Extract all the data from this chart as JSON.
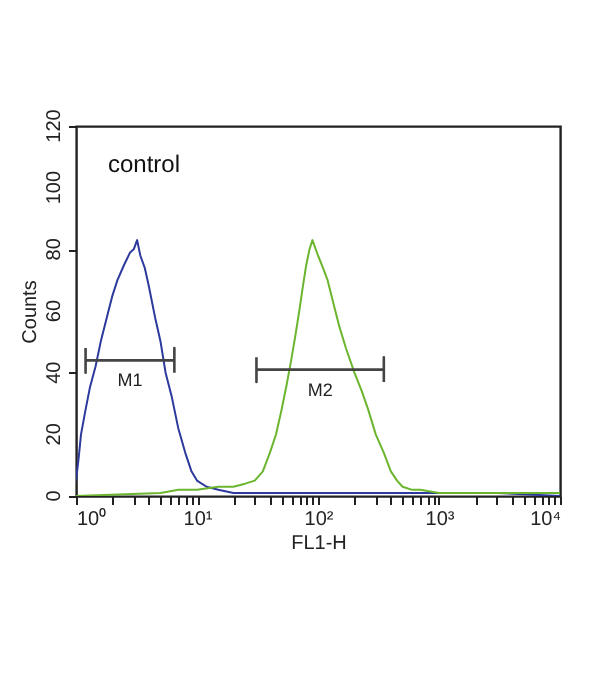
{
  "chart_data": {
    "type": "line",
    "xlabel": "FL1-H",
    "ylabel": "Counts",
    "log": "x",
    "xlim": [
      1,
      10000
    ],
    "ylim": [
      0,
      120
    ],
    "xticks": [
      {
        "value": 1,
        "label": "10⁰"
      },
      {
        "value": 2,
        "label": null
      },
      {
        "value": 3,
        "label": null
      },
      {
        "value": 4,
        "label": null
      },
      {
        "value": 5,
        "label": null
      },
      {
        "value": 6,
        "label": null
      },
      {
        "value": 7,
        "label": null
      },
      {
        "value": 8,
        "label": null
      },
      {
        "value": 9,
        "label": null
      },
      {
        "value": 10,
        "label": "10¹"
      },
      {
        "value": 20,
        "label": null
      },
      {
        "value": 30,
        "label": null
      },
      {
        "value": 40,
        "label": null
      },
      {
        "value": 50,
        "label": null
      },
      {
        "value": 60,
        "label": null
      },
      {
        "value": 70,
        "label": null
      },
      {
        "value": 80,
        "label": null
      },
      {
        "value": 90,
        "label": null
      },
      {
        "value": 100,
        "label": "10²"
      },
      {
        "value": 200,
        "label": null
      },
      {
        "value": 300,
        "label": null
      },
      {
        "value": 400,
        "label": null
      },
      {
        "value": 500,
        "label": null
      },
      {
        "value": 600,
        "label": null
      },
      {
        "value": 700,
        "label": null
      },
      {
        "value": 800,
        "label": null
      },
      {
        "value": 900,
        "label": null
      },
      {
        "value": 1000,
        "label": "10³"
      },
      {
        "value": 2000,
        "label": null
      },
      {
        "value": 3000,
        "label": null
      },
      {
        "value": 4000,
        "label": null
      },
      {
        "value": 5000,
        "label": null
      },
      {
        "value": 6000,
        "label": null
      },
      {
        "value": 7000,
        "label": null
      },
      {
        "value": 8000,
        "label": null
      },
      {
        "value": 9000,
        "label": null
      },
      {
        "value": 10000,
        "label": "10⁴"
      }
    ],
    "yticks": [
      0,
      20,
      40,
      60,
      80,
      100,
      120
    ],
    "series": [
      {
        "color": "#2b3a9c",
        "x": [
          1,
          1.05,
          1.1,
          1.2,
          1.3,
          1.45,
          1.6,
          1.8,
          2,
          2.2,
          2.5,
          2.8,
          3,
          3.2,
          3.4,
          3.7,
          4,
          4.5,
          5,
          5.5,
          6.2,
          7,
          8,
          9,
          10,
          12,
          15,
          20,
          30,
          50,
          100,
          200,
          500,
          1000,
          3000,
          10000
        ],
        "values": [
          5,
          12,
          20,
          28,
          35,
          42,
          50,
          58,
          65,
          70,
          75,
          79,
          80,
          83,
          78,
          74,
          68,
          58,
          50,
          40,
          32,
          22,
          14,
          8,
          5,
          3,
          2,
          1,
          1,
          1,
          1,
          1,
          1,
          1,
          1,
          0
        ]
      },
      {
        "color": "#6cb52f",
        "x": [
          1,
          5,
          7,
          10,
          15,
          20,
          25,
          30,
          35,
          40,
          45,
          50,
          55,
          60,
          65,
          70,
          75,
          80,
          85,
          90,
          100,
          110,
          120,
          135,
          150,
          170,
          200,
          230,
          260,
          300,
          350,
          400,
          450,
          500,
          600,
          700,
          1000,
          2000,
          10000
        ],
        "values": [
          0,
          1,
          2,
          2,
          3,
          3,
          4,
          5,
          8,
          14,
          20,
          28,
          36,
          44,
          52,
          60,
          68,
          75,
          80,
          83,
          78,
          74,
          70,
          62,
          55,
          48,
          40,
          34,
          28,
          20,
          14,
          8,
          5,
          3,
          2,
          2,
          1,
          1,
          1
        ]
      },
      {
        "type": "line",
        "name": "M1",
        "color": "#444444",
        "x": [
          1.2,
          1.2,
          1.2,
          6.5,
          6.5,
          6.5
        ],
        "values": [
          48,
          40,
          44,
          44,
          48,
          40
        ]
      },
      {
        "type": "line",
        "name": "M2",
        "color": "#444444",
        "x": [
          31,
          31,
          31,
          350,
          350,
          350
        ],
        "values": [
          45,
          37,
          41,
          41,
          45,
          37
        ]
      }
    ],
    "annotations": [
      "control"
    ]
  }
}
